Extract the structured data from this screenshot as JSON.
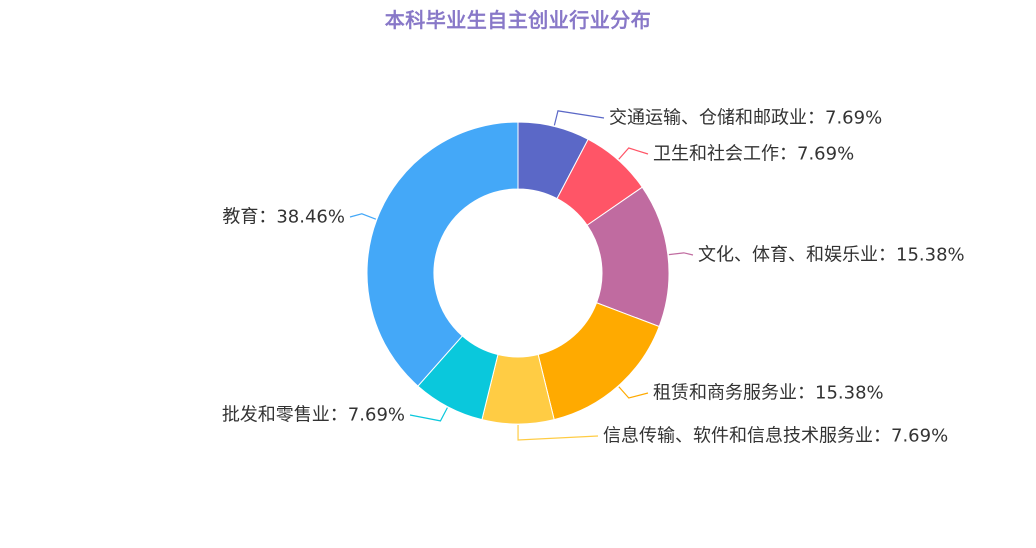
{
  "chart_data": {
    "type": "pie",
    "variant": "donut",
    "title": "本科毕业生自主创业行业分布",
    "title_color": "#8878c8",
    "label_color": "#333333",
    "slices": [
      {
        "name": "交通运输、仓储和邮政业",
        "value": 7.69,
        "label": "交通运输、仓储和邮政业：7.69%",
        "color": "#5b68c7",
        "side": "right"
      },
      {
        "name": "卫生和社会工作",
        "value": 7.69,
        "label": "卫生和社会工作：7.69%",
        "color": "#ff5567",
        "side": "right"
      },
      {
        "name": "文化、体育、和娱乐业",
        "value": 15.38,
        "label": "文化、体育、和娱乐业：15.38%",
        "color": "#c06ba0",
        "side": "right"
      },
      {
        "name": "租赁和商务服务业",
        "value": 15.38,
        "label": "租赁和商务服务业：15.38%",
        "color": "#ffaa00",
        "side": "right"
      },
      {
        "name": "信息传输、软件和信息技术服务业",
        "value": 7.69,
        "label": "信息传输、软件和信息技术服务业：7.69%",
        "color": "#ffcc44",
        "side": "right"
      },
      {
        "name": "批发和零售业",
        "value": 7.69,
        "label": "批发和零售业：7.69%",
        "color": "#0ac8dc",
        "side": "left"
      },
      {
        "name": "教育",
        "value": 38.46,
        "label": "教育：38.46%",
        "color": "#44a8f8",
        "side": "left"
      }
    ]
  }
}
